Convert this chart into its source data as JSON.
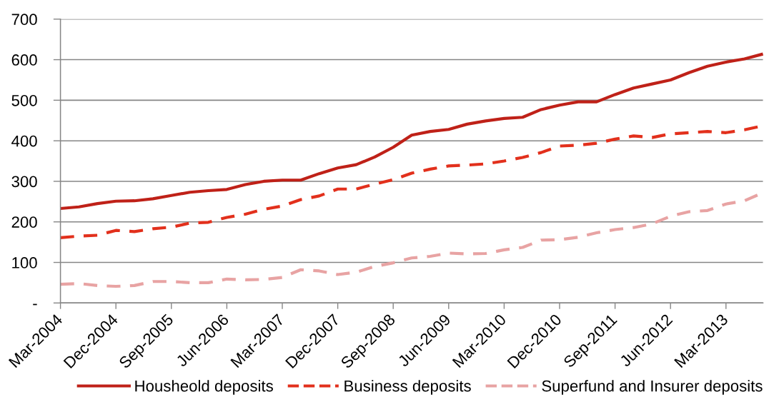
{
  "chart_data": {
    "type": "line",
    "categories": [
      "Mar-2004",
      null,
      null,
      "Dec-2004",
      null,
      null,
      "Sep-2005",
      null,
      null,
      "Jun-2006",
      null,
      null,
      "Mar-2007",
      null,
      null,
      "Dec-2007",
      null,
      null,
      "Sep-2008",
      null,
      null,
      "Jun-2009",
      null,
      null,
      "Mar-2010",
      null,
      null,
      "Dec-2010",
      null,
      null,
      "Sep-2011",
      null,
      null,
      "Jun-2012",
      null,
      null,
      "Mar-2013",
      null,
      null
    ],
    "series": [
      {
        "name": "Housheold deposits",
        "color": "#bf2118",
        "line_style": "solid",
        "values": [
          233,
          237,
          245,
          251,
          252,
          257,
          265,
          273,
          277,
          280,
          292,
          300,
          303,
          303,
          319,
          333,
          341,
          360,
          384,
          414,
          423,
          428,
          441,
          449,
          455,
          458,
          477,
          488,
          496,
          496,
          514,
          530,
          540,
          550,
          568,
          584,
          594,
          602,
          614
        ]
      },
      {
        "name": "Business deposits",
        "color": "#e2301c",
        "line_style": "dashed",
        "values": [
          161,
          165,
          167,
          179,
          176,
          183,
          187,
          197,
          199,
          211,
          219,
          231,
          239,
          255,
          264,
          281,
          281,
          293,
          304,
          320,
          330,
          338,
          340,
          343,
          350,
          359,
          371,
          387,
          389,
          394,
          404,
          412,
          408,
          417,
          420,
          423,
          420,
          427,
          437
        ]
      },
      {
        "name": "Superfund and Insurer deposits",
        "color": "#e8a3a3",
        "line_style": "dashed",
        "values": [
          46,
          48,
          43,
          41,
          43,
          53,
          53,
          50,
          50,
          59,
          57,
          58,
          63,
          82,
          79,
          70,
          76,
          90,
          99,
          111,
          115,
          123,
          121,
          122,
          131,
          137,
          155,
          156,
          162,
          173,
          181,
          186,
          195,
          214,
          225,
          228,
          244,
          252,
          272
        ]
      }
    ],
    "ylim": [
      0,
      700
    ],
    "yticks": [
      {
        "value": 0,
        "label": "-"
      },
      100,
      200,
      300,
      400,
      500,
      600,
      700
    ],
    "grid": "y",
    "legend": "bottom"
  }
}
